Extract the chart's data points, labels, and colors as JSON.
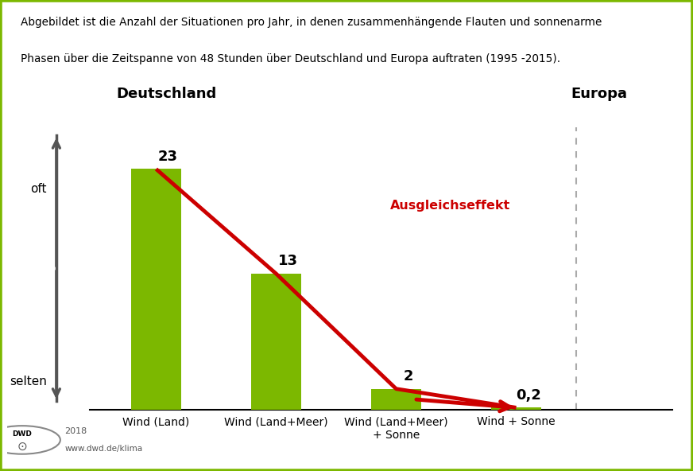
{
  "title_line1": "Abgebildet ist die Anzahl der Situationen pro Jahr, in denen zusammenhängende Flauten und sonnenarme",
  "title_line2": "Phasen über die Zeitspanne von 48 Stunden über Deutschland und Europa auftraten (1995 -2015).",
  "categories": [
    "Wind (Land)",
    "Wind (Land+Meer)",
    "Wind (Land+Meer)\n+ Sonne",
    "Wind + Sonne"
  ],
  "values": [
    23,
    13,
    2,
    0.2
  ],
  "bar_color": "#7cb800",
  "bar_width": 0.42,
  "line_color": "#cc0000",
  "label_deutschland": "Deutschland",
  "label_europa": "Europa",
  "label_oft": "oft",
  "label_selten": "selten",
  "label_ausgleich": "Ausgleichseffekt",
  "year_text": "2018",
  "url_text": "www.dwd.de/klima",
  "bg_color": "#ffffff",
  "border_color": "#7cb800",
  "ylim": [
    0,
    27
  ],
  "value_labels": [
    "23",
    "13",
    "2",
    "0,2"
  ],
  "dashed_line_x": 3.5,
  "arrow_color": "#cc0000",
  "arrow_body_color": "#555555"
}
